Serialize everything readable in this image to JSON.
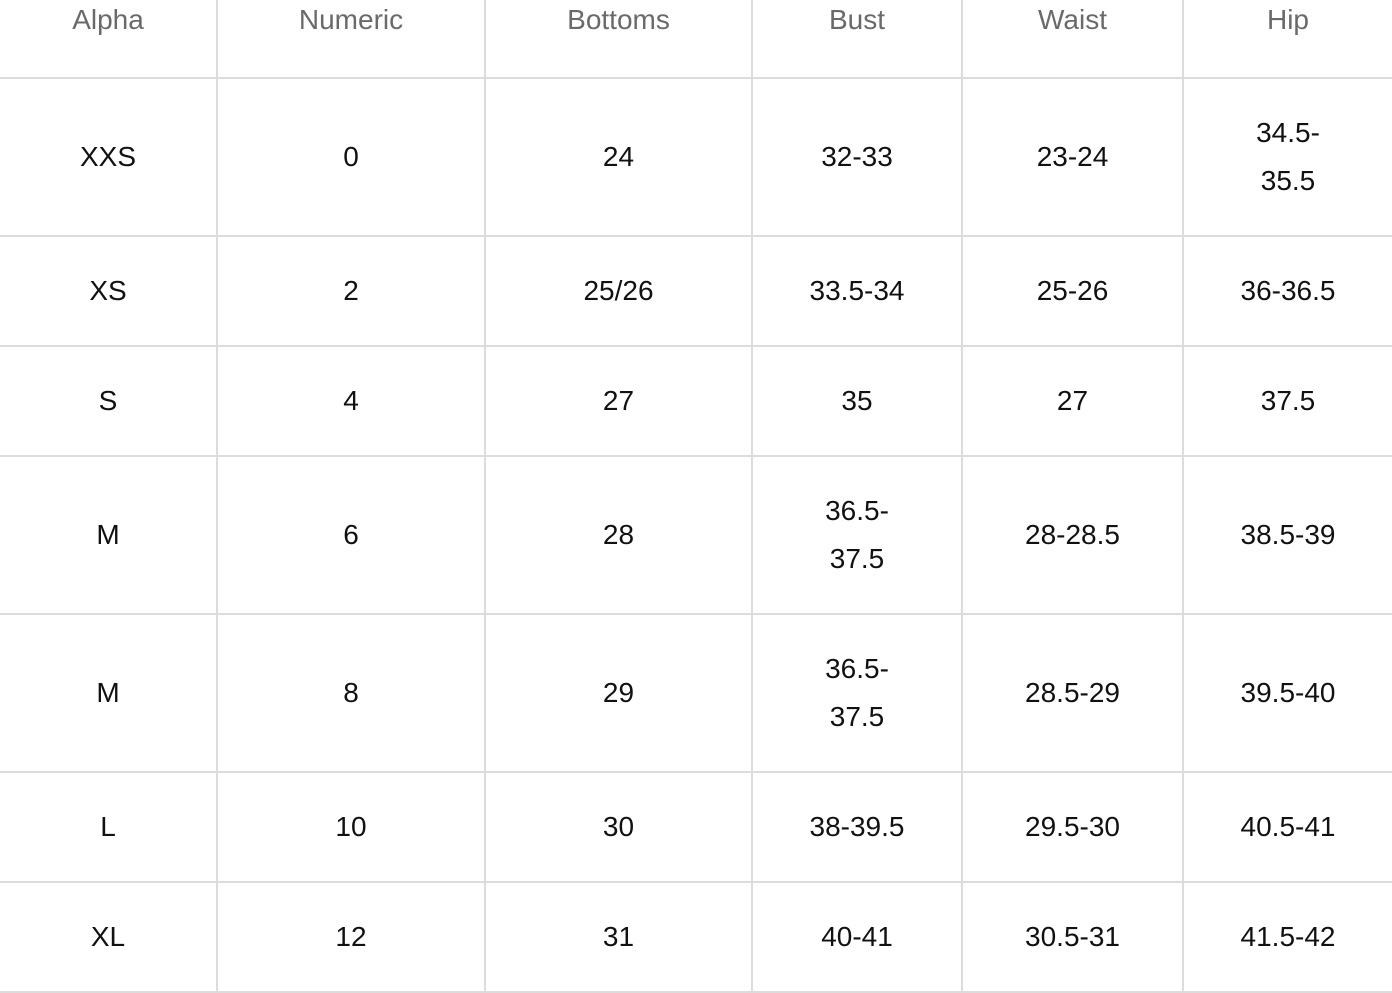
{
  "headers": [
    "Alpha",
    "Numeric",
    "Bottoms",
    "Bust",
    "Waist",
    "Hip"
  ],
  "rows": [
    [
      "XXS",
      "0",
      "24",
      "32-33",
      "23-24",
      "34.5-35.5"
    ],
    [
      "XS",
      "2",
      "25/26",
      "33.5-34",
      "25-26",
      "36-36.5"
    ],
    [
      "S",
      "4",
      "27",
      "35",
      "27",
      "37.5"
    ],
    [
      "M",
      "6",
      "28",
      "36.5-37.5",
      "28-28.5",
      "38.5-39"
    ],
    [
      "M",
      "8",
      "29",
      "36.5-37.5",
      "28.5-29",
      "39.5-40"
    ],
    [
      "L",
      "10",
      "30",
      "38-39.5",
      "29.5-30",
      "40.5-41"
    ],
    [
      "XL",
      "12",
      "31",
      "40-41",
      "30.5-31",
      "41.5-42"
    ]
  ]
}
